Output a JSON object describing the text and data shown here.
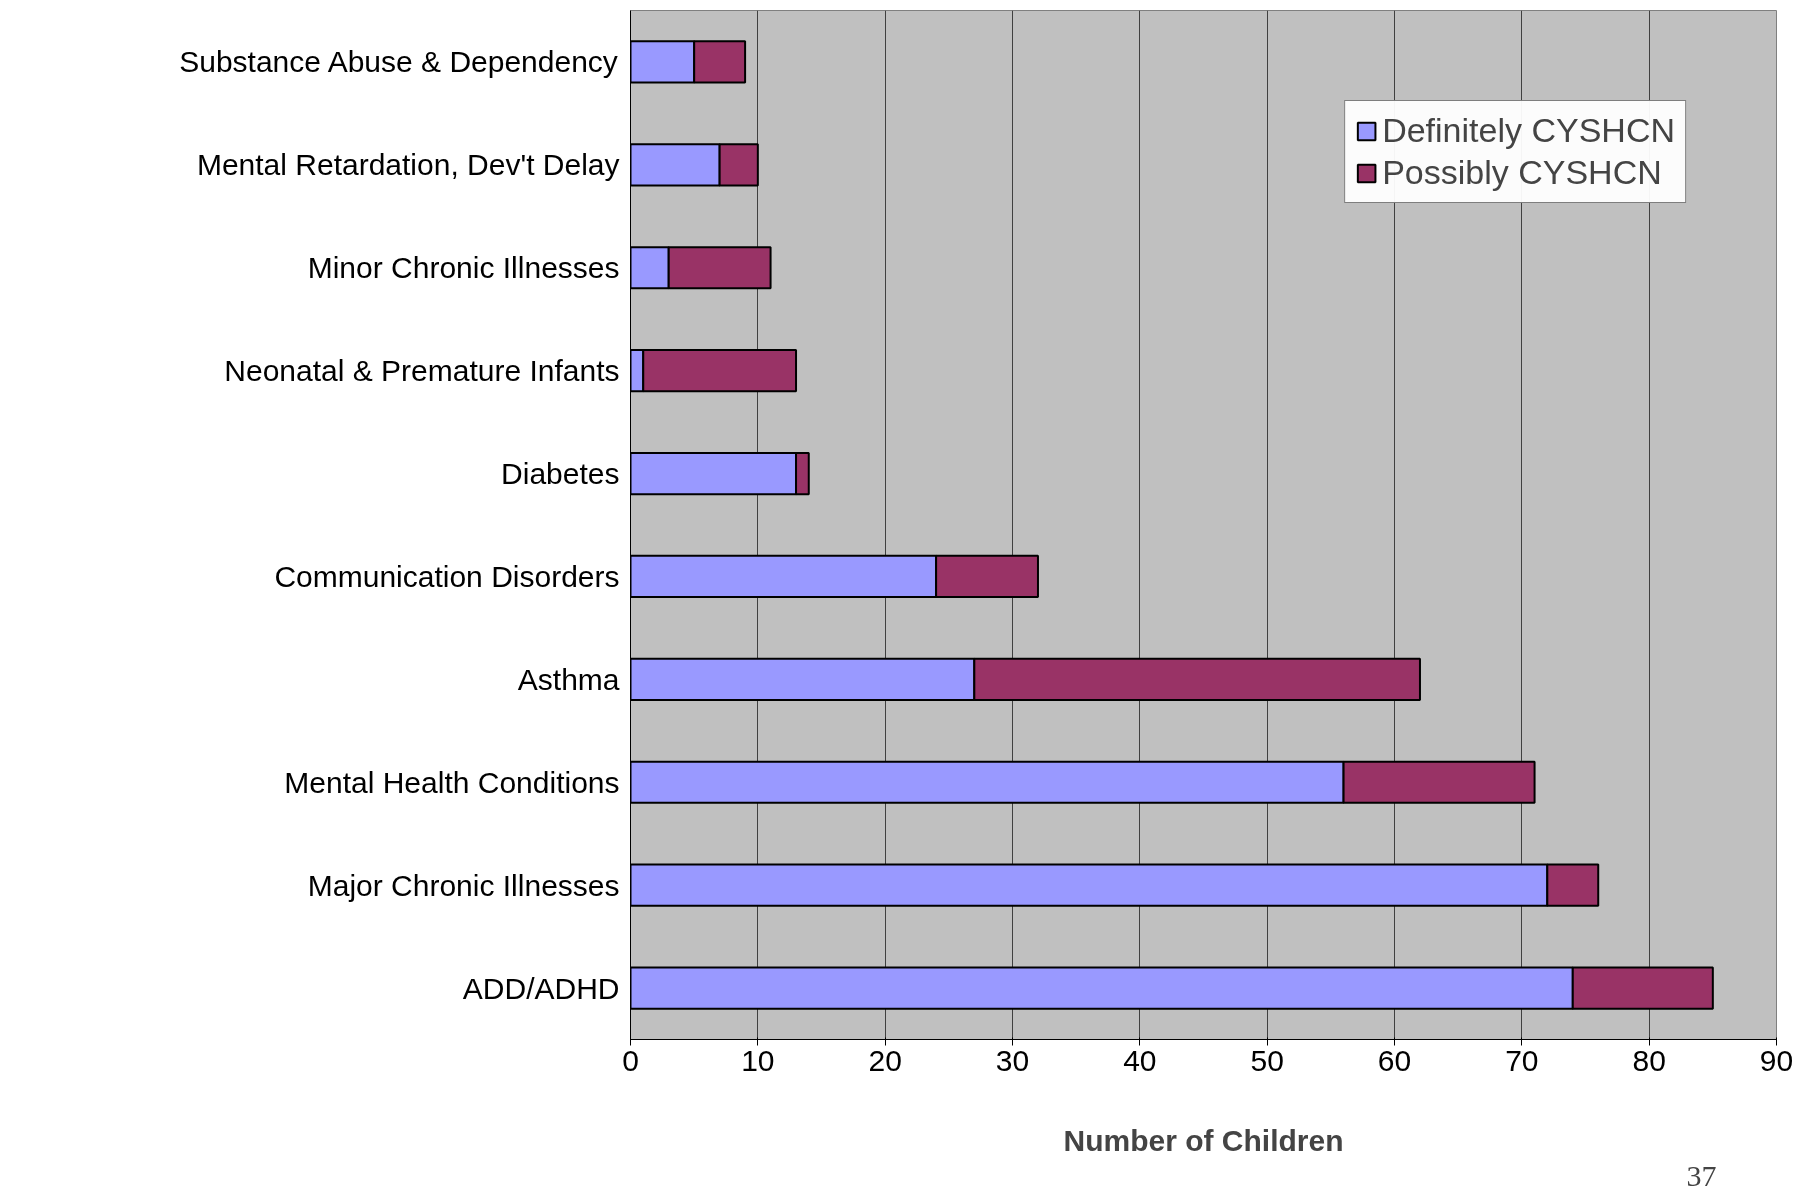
{
  "chart_data": {
    "type": "bar",
    "orientation": "horizontal",
    "stacked": true,
    "categories": [
      "Substance Abuse & Dependency",
      "Mental Retardation, Dev't Delay",
      "Minor Chronic Illnesses",
      "Neonatal & Premature Infants",
      "Diabetes",
      "Communication Disorders",
      "Asthma",
      "Mental Health Conditions",
      "Major Chronic Illnesses",
      "ADD/ADHD"
    ],
    "series": [
      {
        "name": "Definitely CYSHCN",
        "color": "#9999ff",
        "values": [
          5,
          7,
          3,
          1,
          13,
          24,
          27,
          56,
          72,
          74
        ]
      },
      {
        "name": "Possibly CYSHCN",
        "color": "#993366",
        "values": [
          4,
          3,
          8,
          12,
          1,
          8,
          35,
          15,
          4,
          11
        ]
      }
    ],
    "xlabel": "Number of Children",
    "xlim": [
      0,
      90
    ],
    "xticks": [
      0,
      10,
      20,
      30,
      40,
      50,
      60,
      70,
      80,
      90
    ],
    "grid": "x",
    "legend": "top right",
    "annotations": [
      "37"
    ]
  }
}
